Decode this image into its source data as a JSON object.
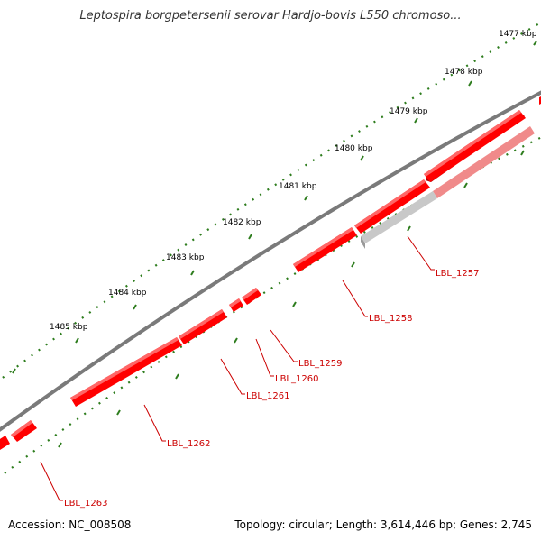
{
  "header": {
    "title": "Leptospira borgpetersenii serovar Hardjo-bovis L550 chromoso..."
  },
  "footer": {
    "accession": "Accession: NC_008508",
    "summary": "Topology: circular; Length: 3,614,446 bp; Genes: 2,745"
  },
  "scale": {
    "ticks": [
      {
        "label": "1477 kbp"
      },
      {
        "label": "1478 kbp"
      },
      {
        "label": "1479 kbp"
      },
      {
        "label": "1480 kbp"
      },
      {
        "label": "1481 kbp"
      },
      {
        "label": "1482 kbp"
      },
      {
        "label": "1483 kbp"
      },
      {
        "label": "1484 kbp"
      },
      {
        "label": "1485 kbp"
      }
    ]
  },
  "genes": [
    {
      "label": "LBL_1257"
    },
    {
      "label": "LBL_1258"
    },
    {
      "label": "LBL_1259"
    },
    {
      "label": "LBL_1260"
    },
    {
      "label": "LBL_1261"
    },
    {
      "label": "LBL_1262"
    },
    {
      "label": "LBL_1263"
    }
  ],
  "colors": {
    "backbone": "#7a7a7a",
    "gene": "#ff0000",
    "gene_top": "#ff6666",
    "gene_shadow": "#b00000",
    "gene_faded": "#f08a8a",
    "gene_pseudo": "#c8c8c8",
    "tick": "#2e7d1e",
    "label": "#cc0000"
  }
}
